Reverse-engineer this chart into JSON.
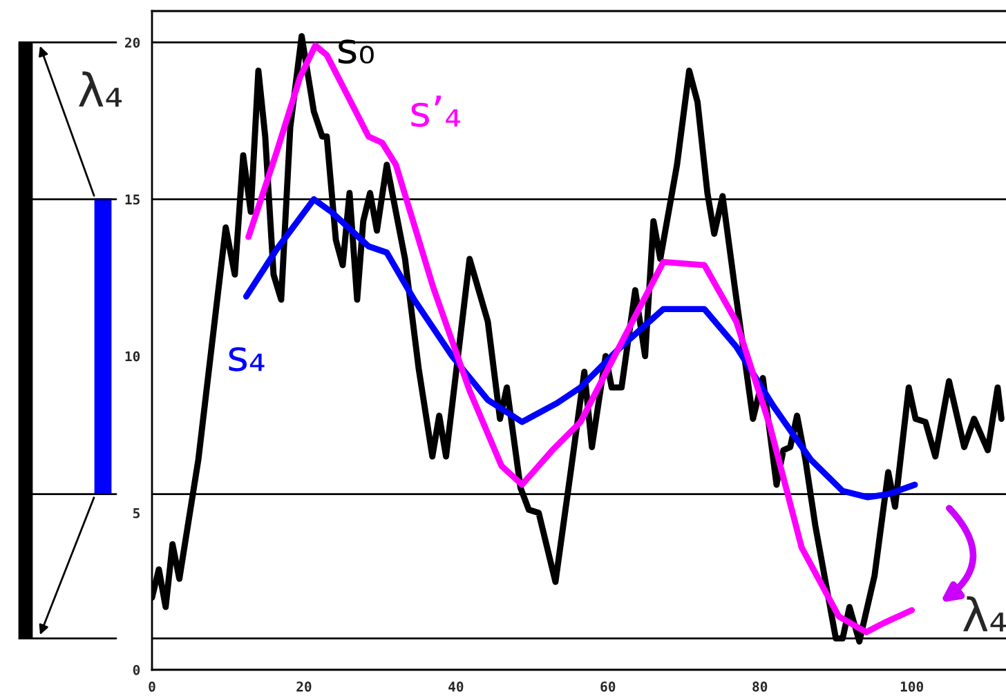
{
  "chart_data": {
    "type": "line",
    "xlim": [
      0,
      112.4
    ],
    "ylim": [
      0,
      21
    ],
    "xticks": [
      0,
      20,
      40,
      60,
      80,
      100
    ],
    "yticks": [
      0,
      5,
      10,
      15,
      20
    ],
    "grid": false,
    "legend": false,
    "marker": "none",
    "line_style": "solid",
    "series": [
      {
        "name": "s₀",
        "color": "#000000",
        "x": [
          0,
          0.9,
          1.8,
          2.7,
          3.6,
          6.1,
          9.7,
          10.9,
          12,
          13,
          14,
          14.9,
          16,
          17,
          18.2,
          19.7,
          21.3,
          22.4,
          23,
          24.2,
          25.1,
          26,
          27,
          27.8,
          28.7,
          29.6,
          30.9,
          33.3,
          35.1,
          36.9,
          37.8,
          38.7,
          41.8,
          44.2,
          45.8,
          46.7,
          48.5,
          49.6,
          50.9,
          53.1,
          55.1,
          56.9,
          57.9,
          59.7,
          60.5,
          61.8,
          63.6,
          64.9,
          66,
          66.9,
          69.1,
          70.7,
          71.8,
          73.1,
          74,
          75.1,
          76.7,
          79.1,
          80.4,
          82.2,
          83.1,
          84,
          84.9,
          86,
          87.3,
          90,
          90.9,
          91.8,
          93.1,
          95.1,
          96.9,
          97.8,
          99.6,
          100.5,
          101.8,
          103.1,
          104.9,
          106.9,
          108.2,
          110,
          111.3,
          111.8
        ],
        "values": [
          2.3,
          3.2,
          2.0,
          4.0,
          2.9,
          6.7,
          14.1,
          12.6,
          16.4,
          14.6,
          19.1,
          17.0,
          12.6,
          11.8,
          17.3,
          20.2,
          17.8,
          17.0,
          17.0,
          13.7,
          12.9,
          15.2,
          11.8,
          14.3,
          15.2,
          14.0,
          16.1,
          13.1,
          9.6,
          6.8,
          8.1,
          6.8,
          13.1,
          11.1,
          8.0,
          9.0,
          5.8,
          5.1,
          5.0,
          2.8,
          6.3,
          9.5,
          7.1,
          10.0,
          9.0,
          9.0,
          12.1,
          10.0,
          14.3,
          13.1,
          16.1,
          19.1,
          18.1,
          15.2,
          13.9,
          15.1,
          12.2,
          8.0,
          9.3,
          5.9,
          7.0,
          7.1,
          8.1,
          6.7,
          4.6,
          1.0,
          1.0,
          2.0,
          0.9,
          3.0,
          6.3,
          5.2,
          9.0,
          8.0,
          7.9,
          6.8,
          9.2,
          7.1,
          8.0,
          7.0,
          9.0,
          8.0
        ]
      },
      {
        "name": "s₄",
        "color": "#0000ff",
        "x": [
          12.4,
          16.4,
          21.3,
          23.6,
          28.5,
          30.9,
          34.5,
          39.5,
          44.2,
          48.7,
          53.3,
          56.4,
          61.3,
          67.3,
          72.7,
          76.9,
          81.8,
          86.7,
          90.9,
          94.2,
          96.9,
          100.4
        ],
        "values": [
          11.9,
          13.4,
          15.0,
          14.6,
          13.5,
          13.3,
          11.8,
          10.0,
          8.6,
          7.9,
          8.5,
          9.0,
          10.2,
          11.5,
          11.5,
          10.3,
          8.4,
          6.7,
          5.7,
          5.5,
          5.6,
          5.9
        ]
      },
      {
        "name": "s’₄",
        "color": "#ff00ff",
        "x": [
          12.7,
          16.4,
          19.5,
          21.5,
          23,
          28.5,
          30.3,
          32.1,
          37,
          41.8,
          46,
          48.7,
          52.7,
          56.4,
          61.3,
          67.3,
          72.7,
          76.9,
          81.3,
          85.5,
          90.4,
          94,
          96.4,
          100
        ],
        "values": [
          13.8,
          16.5,
          18.9,
          19.9,
          19.6,
          17.0,
          16.8,
          16.1,
          12.2,
          8.9,
          6.5,
          5.9,
          7.0,
          7.9,
          10.2,
          13.0,
          12.9,
          11.1,
          7.8,
          3.9,
          1.7,
          1.2,
          1.5,
          1.9
        ]
      }
    ],
    "ref_lines": [
      {
        "axis": "y",
        "value": 20,
        "color": "#000000"
      },
      {
        "axis": "y",
        "value": 15,
        "color": "#000000"
      },
      {
        "axis": "y",
        "value": 5.6,
        "color": "#000000"
      },
      {
        "axis": "y",
        "value": 1.0,
        "color": "#000000"
      }
    ],
    "annotations": [
      "λ₄",
      "λ₄"
    ]
  }
}
